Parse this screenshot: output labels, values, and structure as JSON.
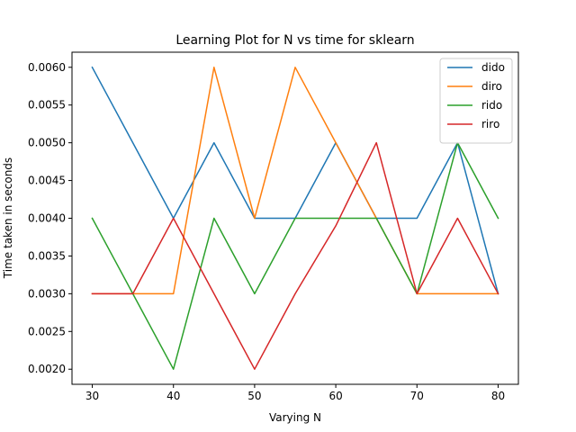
{
  "chart_data": {
    "type": "line",
    "title": "Learning Plot for N vs time for sklearn",
    "xlabel": "Varying N",
    "ylabel": "Time taken in seconds",
    "x": [
      30,
      35,
      40,
      45,
      50,
      55,
      60,
      65,
      70,
      75,
      80
    ],
    "xticks": [
      30,
      40,
      50,
      60,
      70,
      80
    ],
    "yticks": [
      0.002,
      0.0025,
      0.003,
      0.0035,
      0.004,
      0.0045,
      0.005,
      0.0055,
      0.006
    ],
    "ytick_labels": [
      "0.0020",
      "0.0025",
      "0.0030",
      "0.0035",
      "0.0040",
      "0.0045",
      "0.0050",
      "0.0055",
      "0.0060"
    ],
    "xlim": [
      27.5,
      82.5
    ],
    "ylim": [
      0.0018,
      0.0062
    ],
    "legend_position": "top-right",
    "grid": false,
    "series": [
      {
        "name": "dido",
        "color": "#1f77b4",
        "values": [
          0.006,
          0.005,
          0.004,
          0.005,
          0.004,
          0.004,
          0.005,
          0.004,
          0.004,
          0.005,
          0.003
        ]
      },
      {
        "name": "diro",
        "color": "#ff7f0e",
        "values": [
          0.003,
          0.003,
          0.003,
          0.006,
          0.004,
          0.006,
          0.005,
          0.004,
          0.003,
          0.003,
          0.003
        ]
      },
      {
        "name": "rido",
        "color": "#2ca02c",
        "values": [
          0.004,
          0.003,
          0.002,
          0.004,
          0.003,
          0.004,
          0.004,
          0.004,
          0.003,
          0.005,
          0.004
        ]
      },
      {
        "name": "riro",
        "color": "#d62728",
        "values": [
          0.003,
          0.003,
          0.004,
          0.003,
          0.002,
          0.003,
          0.0039,
          0.005,
          0.003,
          0.004,
          0.003
        ]
      }
    ]
  }
}
